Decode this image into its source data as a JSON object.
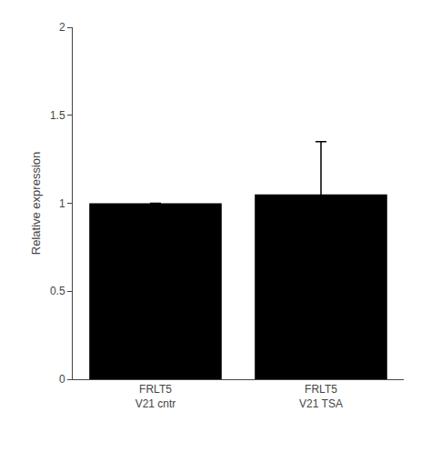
{
  "chart_data": {
    "type": "bar",
    "categories": [
      "FRLT5\nV21 cntr",
      "FRLT5\nV21 TSA"
    ],
    "values": [
      1.0,
      1.05
    ],
    "errors_upper": [
      0.0,
      0.3
    ],
    "errors_lower": [
      0.0,
      0.05
    ],
    "color": "#000000",
    "ylabel": "Relative expression",
    "ylim": [
      0,
      2
    ],
    "yticks": [
      0,
      0.5,
      1,
      1.5,
      2
    ],
    "grid": false
  }
}
